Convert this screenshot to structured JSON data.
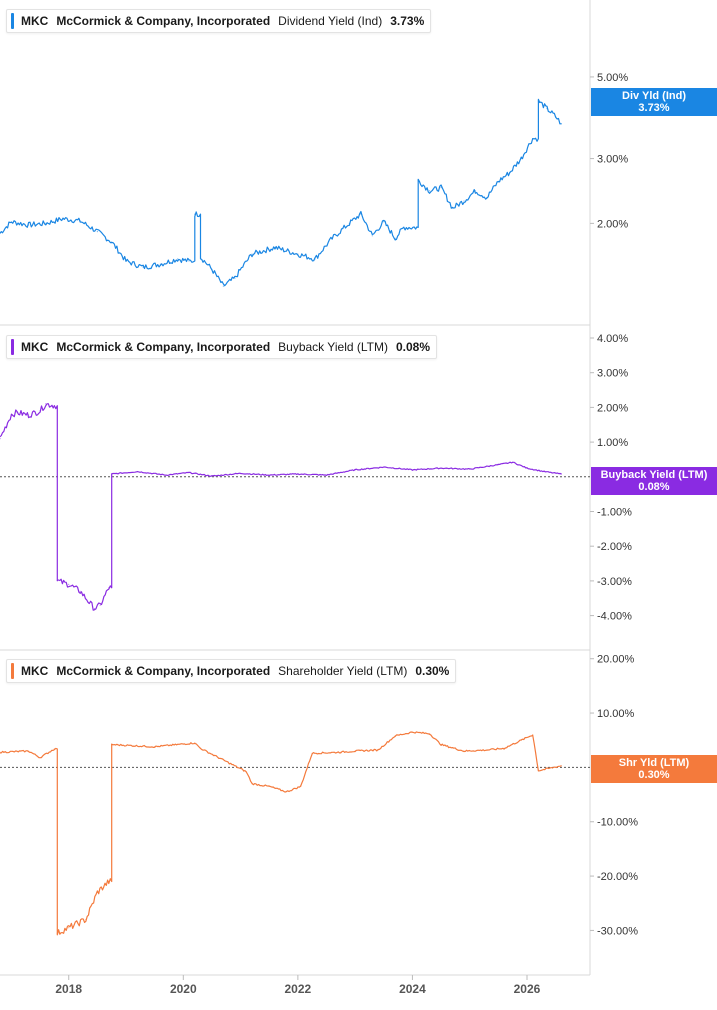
{
  "x_axis": {
    "ticks": [
      "2018",
      "2020",
      "2022",
      "2024",
      "2026"
    ],
    "start": 2016.8,
    "end": 2027.1
  },
  "panels": [
    {
      "ticker": "MKC",
      "company": "McCormick & Company, Incorporated",
      "metric": "Dividend Yield (Ind)",
      "value": "3.73%",
      "tag_title": "Div Yld (Ind)",
      "tag_value": "3.73%",
      "color": "#1a86e3",
      "scale": "log",
      "tick_labels": [
        "5.00%",
        "3.00%",
        "2.00%"
      ]
    },
    {
      "ticker": "MKC",
      "company": "McCormick & Company, Incorporated",
      "metric": "Buyback Yield (LTM)",
      "value": "0.08%",
      "tag_title": "Buyback Yield (LTM)",
      "tag_value": "0.08%",
      "color": "#8a2be2",
      "scale": "linear",
      "tick_labels": [
        "4.00%",
        "3.00%",
        "2.00%",
        "1.00%",
        "-1.00%",
        "-2.00%",
        "-3.00%",
        "-4.00%"
      ]
    },
    {
      "ticker": "MKC",
      "company": "McCormick & Company, Incorporated",
      "metric": "Shareholder Yield (LTM)",
      "value": "0.30%",
      "tag_title": "Shr Yld (LTM)",
      "tag_value": "0.30%",
      "color": "#f47a3c",
      "scale": "linear",
      "tick_labels": [
        "20.00%",
        "10.00%",
        "-10.00%",
        "-20.00%",
        "-30.00%"
      ]
    }
  ],
  "chart_data": [
    {
      "type": "line",
      "title": "MKC McCormick & Company, Incorporated Dividend Yield (Ind)",
      "ylabel": "Dividend Yield (Ind) %",
      "yscale": "log",
      "ylim": [
        1.2,
        6.5
      ],
      "x": [
        2016.8,
        2017.0,
        2017.3,
        2017.6,
        2017.9,
        2018.2,
        2018.5,
        2018.75,
        2019.0,
        2019.3,
        2019.6,
        2019.9,
        2020.1,
        2020.2,
        2020.3,
        2020.5,
        2020.7,
        2020.9,
        2021.2,
        2021.6,
        2022.0,
        2022.3,
        2022.6,
        2022.9,
        2023.1,
        2023.3,
        2023.5,
        2023.7,
        2023.85,
        2024.1,
        2024.3,
        2024.5,
        2024.7,
        2024.9,
        2025.1,
        2025.3,
        2025.5,
        2025.7,
        2025.9,
        2026.1,
        2026.2,
        2026.35,
        2026.5,
        2026.6
      ],
      "values": [
        1.88,
        2.02,
        1.98,
        2.0,
        2.06,
        2.03,
        1.9,
        1.78,
        1.58,
        1.52,
        1.55,
        1.6,
        1.58,
        2.12,
        1.62,
        1.5,
        1.35,
        1.42,
        1.65,
        1.72,
        1.65,
        1.6,
        1.82,
        2.0,
        2.12,
        1.85,
        2.02,
        1.82,
        1.95,
        2.62,
        2.45,
        2.5,
        2.2,
        2.3,
        2.45,
        2.35,
        2.6,
        2.75,
        3.0,
        3.4,
        4.3,
        4.1,
        3.9,
        3.73
      ]
    },
    {
      "type": "line",
      "title": "MKC McCormick & Company, Incorporated Buyback Yield (LTM)",
      "ylabel": "Buyback Yield (LTM) %",
      "ylim": [
        -4.3,
        4.0
      ],
      "x": [
        2016.8,
        2017.0,
        2017.1,
        2017.3,
        2017.5,
        2017.6,
        2017.75,
        2017.8,
        2018.0,
        2018.2,
        2018.45,
        2018.55,
        2018.7,
        2018.75,
        2019.2,
        2019.7,
        2020.1,
        2020.5,
        2021.0,
        2021.5,
        2022.0,
        2022.5,
        2023.0,
        2023.5,
        2024.0,
        2024.5,
        2025.0,
        2025.5,
        2025.75,
        2026.0,
        2026.3,
        2026.6
      ],
      "values": [
        1.1,
        1.8,
        1.85,
        1.78,
        1.9,
        2.1,
        2.05,
        -3.0,
        -3.1,
        -3.3,
        -3.8,
        -3.7,
        -3.2,
        0.08,
        0.15,
        0.05,
        0.12,
        0.02,
        0.1,
        0.05,
        0.08,
        0.05,
        0.2,
        0.28,
        0.2,
        0.25,
        0.22,
        0.35,
        0.42,
        0.25,
        0.15,
        0.08
      ]
    },
    {
      "type": "line",
      "title": "MKC McCormick & Company, Incorporated Shareholder Yield (LTM)",
      "ylabel": "Shareholder Yield (LTM) %",
      "ylim": [
        -32.5,
        20.5
      ],
      "x": [
        2016.8,
        2017.3,
        2017.5,
        2017.75,
        2017.8,
        2018.0,
        2018.3,
        2018.5,
        2018.7,
        2018.75,
        2019.5,
        2020.2,
        2020.3,
        2021.1,
        2021.2,
        2021.5,
        2021.8,
        2022.05,
        2022.25,
        2022.75,
        2023.0,
        2023.4,
        2023.7,
        2024.0,
        2024.3,
        2024.5,
        2024.9,
        2025.3,
        2025.6,
        2025.9,
        2026.1,
        2026.2,
        2026.6
      ],
      "values": [
        2.8,
        3.0,
        1.8,
        3.4,
        -30.5,
        -29.5,
        -28.0,
        -23.0,
        -21.0,
        4.2,
        3.8,
        4.5,
        3.5,
        -0.8,
        -3.0,
        -3.5,
        -4.5,
        -3.5,
        2.6,
        2.8,
        3.0,
        3.2,
        5.8,
        6.5,
        6.2,
        4.2,
        3.0,
        3.2,
        3.5,
        5.0,
        6.0,
        -0.6,
        0.3
      ]
    }
  ]
}
